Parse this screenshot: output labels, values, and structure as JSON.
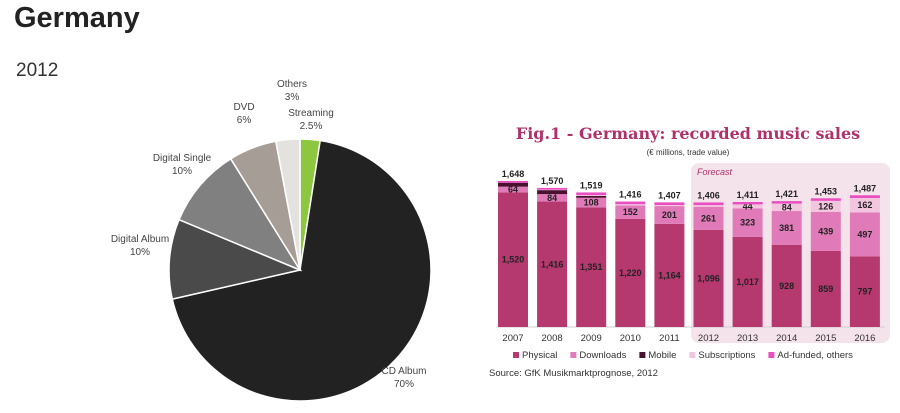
{
  "page": {
    "title": "Germany",
    "subtitle": "2012"
  },
  "chart_data": [
    {
      "type": "pie",
      "title": "Germany 2012",
      "slices": [
        {
          "label": "Streaming",
          "pct_label": "2.5%",
          "value": 2.5,
          "color": "#8dc63f"
        },
        {
          "label": "CD Album",
          "pct_label": "70%",
          "value": 70,
          "color": "#222222"
        },
        {
          "label": "Digital Album",
          "pct_label": "10%",
          "value": 10,
          "color": "#4a4a4a"
        },
        {
          "label": "Digital Single",
          "pct_label": "10%",
          "value": 10,
          "color": "#808080"
        },
        {
          "label": "DVD",
          "pct_label": "6%",
          "value": 6,
          "color": "#a69e96"
        },
        {
          "label": "Others",
          "pct_label": "3%",
          "value": 3,
          "color": "#e4e2df"
        }
      ]
    },
    {
      "type": "bar",
      "stacked": true,
      "title": "Fig.1 - Germany: recorded music sales",
      "subtitle": "(€ millions, trade value)",
      "source": "Source: GfK Musikmarktprognose, 2012",
      "annotation": "Forecast",
      "forecast_from": "2012",
      "categories": [
        "2007",
        "2008",
        "2009",
        "2010",
        "2011",
        "2012",
        "2013",
        "2014",
        "2015",
        "2016"
      ],
      "totals": [
        "1,648",
        "1,570",
        "1,519",
        "1,416",
        "1,407",
        "1,406",
        "1,411",
        "1,421",
        "1,453",
        "1,487"
      ],
      "total_values": [
        1648,
        1570,
        1519,
        1416,
        1407,
        1406,
        1411,
        1421,
        1453,
        1487
      ],
      "series": [
        {
          "name": "Physical",
          "color": "#b5386f",
          "values": [
            1520,
            1416,
            1351,
            1220,
            1164,
            1096,
            1017,
            928,
            859,
            797
          ],
          "labels": [
            "1,520",
            "1,416",
            "1,351",
            "1,220",
            "1,164",
            "1,096",
            "1,017",
            "928",
            "859",
            "797"
          ]
        },
        {
          "name": "Downloads",
          "color": "#e07ab8",
          "values": [
            64,
            84,
            108,
            152,
            201,
            261,
            323,
            381,
            439,
            497
          ],
          "labels": [
            "64",
            "84",
            "108",
            "152",
            "201",
            "261",
            "323",
            "381",
            "439",
            "497"
          ]
        },
        {
          "name": "Mobile",
          "color": "#4a1030",
          "values": [
            44,
            45,
            20,
            0,
            0,
            0,
            0,
            0,
            0,
            0
          ]
        },
        {
          "name": "Subscriptions",
          "color": "#f3c6e0",
          "values": [
            0,
            5,
            10,
            14,
            12,
            19,
            44,
            84,
            126,
            162
          ],
          "labels": [
            "",
            "",
            "",
            "",
            "",
            "",
            "44",
            "84",
            "126",
            "162"
          ]
        },
        {
          "name": "Ad-funded, others",
          "color": "#e94fc0",
          "values": [
            20,
            20,
            30,
            30,
            30,
            30,
            27,
            28,
            29,
            31
          ]
        }
      ]
    }
  ]
}
